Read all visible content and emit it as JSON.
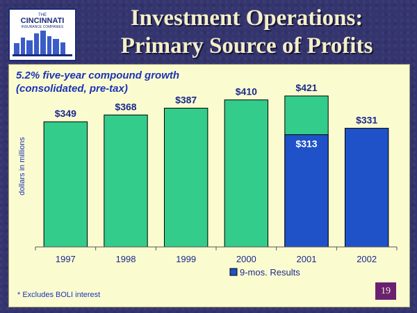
{
  "logo": {
    "line1": "THE",
    "line2": "CINCINNATI",
    "line3": "INSURANCE COMPANIES"
  },
  "title_line1": "Investment Operations:",
  "title_line2": "Primary Source of Profits",
  "subtitle_line1": "5.2% five-year compound growth",
  "subtitle_line2": "(consolidated, pre-tax)",
  "footnote": "* Excludes BOLI interest",
  "page_number": "19",
  "colors": {
    "annual": "#33cc8a",
    "nine_months": "#1f52c8",
    "text": "#1a2a8c"
  },
  "chart_data": {
    "type": "bar",
    "ylabel": "dollars in millions",
    "categories": [
      "1997",
      "1998",
      "1999",
      "2000",
      "2001",
      "2002"
    ],
    "series": [
      {
        "name": "",
        "values": [
          349,
          368,
          387,
          410,
          421,
          null
        ]
      },
      {
        "name": "9-mos. Results",
        "values": [
          null,
          null,
          null,
          null,
          313,
          331
        ]
      }
    ],
    "value_labels": [
      "$349",
      "$368",
      "$387",
      "$410",
      "$421",
      "$331"
    ],
    "inner_labels": [
      "",
      "",
      "",
      "",
      "$313",
      ""
    ],
    "ylim": [
      0,
      450
    ],
    "grid": false,
    "legend_position": "bottom"
  }
}
